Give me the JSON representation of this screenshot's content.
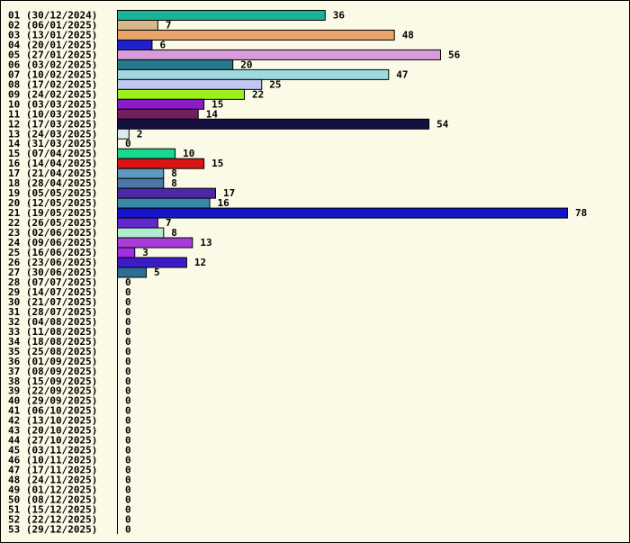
{
  "chart_data": {
    "type": "bar",
    "orientation": "horizontal",
    "title": "",
    "xlabel": "",
    "ylabel": "",
    "xlim": [
      0,
      78
    ],
    "grid": false,
    "legend": "none",
    "categories": [
      "01 (30/12/2024)",
      "02 (06/01/2025)",
      "03 (13/01/2025)",
      "04 (20/01/2025)",
      "05 (27/01/2025)",
      "06 (03/02/2025)",
      "07 (10/02/2025)",
      "08 (17/02/2025)",
      "09 (24/02/2025)",
      "10 (03/03/2025)",
      "11 (10/03/2025)",
      "12 (17/03/2025)",
      "13 (24/03/2025)",
      "14 (31/03/2025)",
      "15 (07/04/2025)",
      "16 (14/04/2025)",
      "17 (21/04/2025)",
      "18 (28/04/2025)",
      "19 (05/05/2025)",
      "20 (12/05/2025)",
      "21 (19/05/2025)",
      "22 (26/05/2025)",
      "23 (02/06/2025)",
      "24 (09/06/2025)",
      "25 (16/06/2025)",
      "26 (23/06/2025)",
      "27 (30/06/2025)",
      "28 (07/07/2025)",
      "29 (14/07/2025)",
      "30 (21/07/2025)",
      "31 (28/07/2025)",
      "32 (04/08/2025)",
      "33 (11/08/2025)",
      "34 (18/08/2025)",
      "35 (25/08/2025)",
      "36 (01/09/2025)",
      "37 (08/09/2025)",
      "38 (15/09/2025)",
      "39 (22/09/2025)",
      "40 (29/09/2025)",
      "41 (06/10/2025)",
      "42 (13/10/2025)",
      "43 (20/10/2025)",
      "44 (27/10/2025)",
      "45 (03/11/2025)",
      "46 (10/11/2025)",
      "47 (17/11/2025)",
      "48 (24/11/2025)",
      "49 (01/12/2025)",
      "50 (08/12/2025)",
      "51 (15/12/2025)",
      "52 (22/12/2025)",
      "53 (29/12/2025)"
    ],
    "values": [
      36,
      7,
      48,
      6,
      56,
      20,
      47,
      25,
      22,
      15,
      14,
      54,
      2,
      0,
      10,
      15,
      8,
      8,
      17,
      16,
      78,
      7,
      8,
      13,
      3,
      12,
      5,
      0,
      0,
      0,
      0,
      0,
      0,
      0,
      0,
      0,
      0,
      0,
      0,
      0,
      0,
      0,
      0,
      0,
      0,
      0,
      0,
      0,
      0,
      0,
      0,
      0,
      0
    ],
    "colors": [
      "#1ab39a",
      "#d7b88c",
      "#e8a46c",
      "#2020d0",
      "#d89cd8",
      "#267a8c",
      "#a0d8e0",
      "#c0c8f0",
      "#9cf01c",
      "#8a1cc8",
      "#70205c",
      "#141040",
      "#d8ecf0",
      "#ffffff",
      "#18d890",
      "#d81414",
      "#5c98c0",
      "#4c78a8",
      "#4c28a8",
      "#3c88a8",
      "#1414c8",
      "#6428d0",
      "#b0ecd0",
      "#a83cd8",
      "#a030e0",
      "#3c1cc8",
      "#2c6e94",
      "#ffffff",
      "#ffffff",
      "#ffffff",
      "#ffffff",
      "#ffffff",
      "#ffffff",
      "#ffffff",
      "#ffffff",
      "#ffffff",
      "#ffffff",
      "#ffffff",
      "#ffffff",
      "#ffffff",
      "#ffffff",
      "#ffffff",
      "#ffffff",
      "#ffffff",
      "#ffffff",
      "#ffffff",
      "#ffffff",
      "#ffffff",
      "#ffffff",
      "#ffffff",
      "#ffffff",
      "#ffffff",
      "#ffffff"
    ],
    "background_color": "#fafae6",
    "border_color": "#000000"
  }
}
